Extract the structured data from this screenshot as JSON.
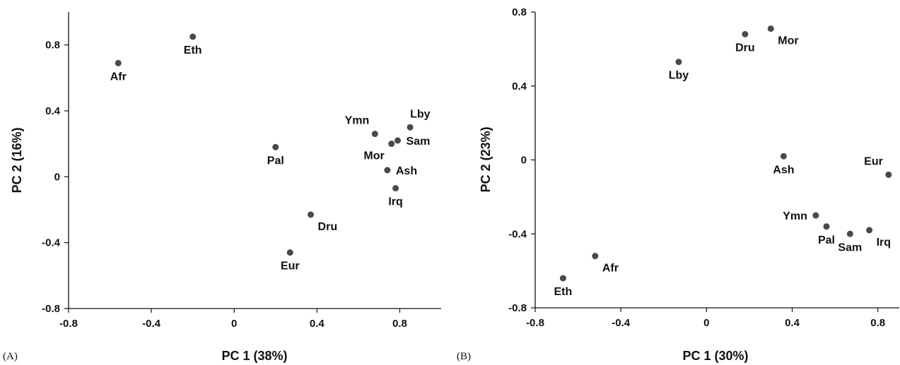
{
  "chart_data": [
    {
      "type": "scatter",
      "panel_label": "(A)",
      "xlabel": "PC 1 (38%)",
      "ylabel": "PC 2 (16%)",
      "xlim": [
        -0.8,
        1.0
      ],
      "ylim": [
        -0.8,
        1.0
      ],
      "xticks": [
        -0.8,
        -0.4,
        0,
        0.4,
        0.8
      ],
      "yticks": [
        -0.8,
        -0.4,
        0,
        0.4,
        0.8
      ],
      "xtick_labels": [
        "-0.8",
        "-0.4",
        "0",
        "0.4",
        "0.8"
      ],
      "ytick_labels": [
        "-0.8",
        "-0.4",
        "0",
        "0.4",
        "0.8"
      ],
      "grid": false,
      "marker_color": "#4a4a4a",
      "points": [
        {
          "label": "Afr",
          "x": -0.56,
          "y": 0.69,
          "label_pos": "below"
        },
        {
          "label": "Eth",
          "x": -0.2,
          "y": 0.85,
          "label_pos": "below"
        },
        {
          "label": "Pal",
          "x": 0.2,
          "y": 0.18,
          "label_pos": "below"
        },
        {
          "label": "Dru",
          "x": 0.37,
          "y": -0.23,
          "label_pos": "below-right"
        },
        {
          "label": "Eur",
          "x": 0.27,
          "y": -0.46,
          "label_pos": "below"
        },
        {
          "label": "Ymn",
          "x": 0.68,
          "y": 0.26,
          "label_pos": "above-left"
        },
        {
          "label": "Lby",
          "x": 0.85,
          "y": 0.3,
          "label_pos": "above-right"
        },
        {
          "label": "Mor",
          "x": 0.76,
          "y": 0.2,
          "label_pos": "below-left"
        },
        {
          "label": "Sam",
          "x": 0.79,
          "y": 0.22,
          "label_pos": "right"
        },
        {
          "label": "Ash",
          "x": 0.74,
          "y": 0.04,
          "label_pos": "right"
        },
        {
          "label": "Irq",
          "x": 0.78,
          "y": -0.07,
          "label_pos": "below"
        }
      ]
    },
    {
      "type": "scatter",
      "panel_label": "(B)",
      "xlabel": "PC 1 (30%)",
      "ylabel": "PC 2 (23%)",
      "xlim": [
        -0.8,
        0.9
      ],
      "ylim": [
        -0.8,
        0.8
      ],
      "xticks": [
        -0.8,
        -0.4,
        0,
        0.4,
        0.8
      ],
      "yticks": [
        -0.8,
        -0.4,
        0,
        0.4,
        0.8
      ],
      "xtick_labels": [
        "-0.8",
        "-0.4",
        "0",
        "0.4",
        "0.8"
      ],
      "ytick_labels": [
        "-0.8",
        "-0.4",
        "0",
        "0.4",
        "0.8"
      ],
      "grid": false,
      "marker_color": "#4a4a4a",
      "points": [
        {
          "label": "Dru",
          "x": 0.18,
          "y": 0.68,
          "label_pos": "below"
        },
        {
          "label": "Mor",
          "x": 0.3,
          "y": 0.71,
          "label_pos": "below-right"
        },
        {
          "label": "Lby",
          "x": -0.13,
          "y": 0.53,
          "label_pos": "below"
        },
        {
          "label": "Ash",
          "x": 0.36,
          "y": 0.02,
          "label_pos": "below"
        },
        {
          "label": "Eur",
          "x": 0.85,
          "y": -0.08,
          "label_pos": "above-left"
        },
        {
          "label": "Ymn",
          "x": 0.51,
          "y": -0.3,
          "label_pos": "left"
        },
        {
          "label": "Pal",
          "x": 0.56,
          "y": -0.36,
          "label_pos": "below"
        },
        {
          "label": "Sam",
          "x": 0.67,
          "y": -0.4,
          "label_pos": "below"
        },
        {
          "label": "Irq",
          "x": 0.76,
          "y": -0.38,
          "label_pos": "below-right"
        },
        {
          "label": "Afr",
          "x": -0.52,
          "y": -0.52,
          "label_pos": "below-right"
        },
        {
          "label": "Eth",
          "x": -0.67,
          "y": -0.64,
          "label_pos": "below"
        }
      ]
    }
  ]
}
